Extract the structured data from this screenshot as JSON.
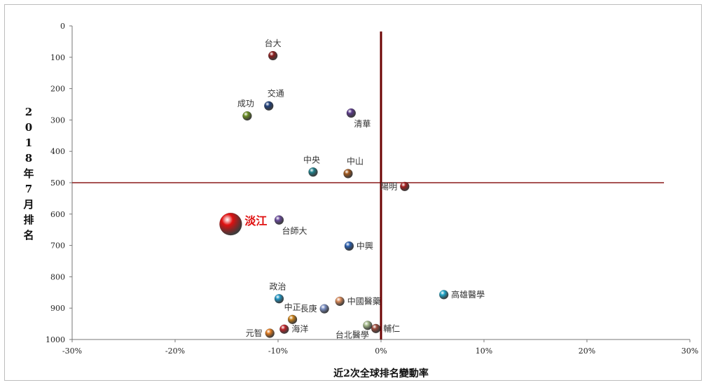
{
  "chart_data": {
    "type": "scatter",
    "title": "",
    "xlabel": "近2次全球排名變動率",
    "ylabel": "2018年7月排名",
    "xlim": [
      -0.3,
      0.3
    ],
    "ylim": [
      0,
      1000
    ],
    "y_inverted": true,
    "x_ticks": [
      "-30%",
      "-20%",
      "-10%",
      "0%",
      "10%",
      "20%",
      "30%"
    ],
    "y_ticks": [
      "0",
      "100",
      "200",
      "300",
      "400",
      "500",
      "600",
      "700",
      "800",
      "900",
      "1000"
    ],
    "reference_lines": {
      "horizontal_y": 500,
      "vertical_x": 0
    },
    "reference_line_colors": {
      "horizontal": "#8b1a1a",
      "vertical": "#6b0000"
    },
    "points": [
      {
        "label": "台大",
        "x": -0.105,
        "y": 95,
        "color": "#8b1c1c",
        "label_pos": "above"
      },
      {
        "label": "交通",
        "x": -0.109,
        "y": 255,
        "color": "#1f3f7a",
        "label_pos": "above-right"
      },
      {
        "label": "成功",
        "x": -0.13,
        "y": 287,
        "color": "#6b8e23",
        "label_pos": "above-left"
      },
      {
        "label": "清華",
        "x": -0.029,
        "y": 278,
        "color": "#5b3a8a",
        "label_pos": "below-right"
      },
      {
        "label": "中央",
        "x": -0.066,
        "y": 466,
        "color": "#1f7f8a",
        "label_pos": "above-left"
      },
      {
        "label": "中山",
        "x": -0.032,
        "y": 471,
        "color": "#a0561b",
        "label_pos": "above-right"
      },
      {
        "label": "陽明",
        "x": 0.023,
        "y": 512,
        "color": "#a52020",
        "label_pos": "left"
      },
      {
        "label": "淡江",
        "x": -0.146,
        "y": 632,
        "color": "#e01010",
        "label_pos": "right",
        "highlight": true,
        "label_color": "#e01010"
      },
      {
        "label": "台師大",
        "x": -0.099,
        "y": 619,
        "color": "#6a4c9c",
        "label_pos": "below-right"
      },
      {
        "label": "中興",
        "x": -0.031,
        "y": 702,
        "color": "#2a5fb0",
        "label_pos": "right"
      },
      {
        "label": "高雄醫學",
        "x": 0.061,
        "y": 857,
        "color": "#1fa6c8",
        "label_pos": "right"
      },
      {
        "label": "政治",
        "x": -0.099,
        "y": 870,
        "color": "#2196c4",
        "label_pos": "above-left"
      },
      {
        "label": "中國醫藥",
        "x": -0.04,
        "y": 878,
        "color": "#d98a5a",
        "label_pos": "right"
      },
      {
        "label": "長庚",
        "x": -0.055,
        "y": 902,
        "color": "#7b8fc4",
        "label_pos": "left"
      },
      {
        "label": "中正",
        "x": -0.086,
        "y": 936,
        "color": "#c8801a",
        "label_pos": "above"
      },
      {
        "label": "台北醫學",
        "x": -0.013,
        "y": 955,
        "color": "#a4b98a",
        "label_pos": "below-left"
      },
      {
        "label": "輔仁",
        "x": -0.005,
        "y": 965,
        "color": "#9a4a3a",
        "label_pos": "right"
      },
      {
        "label": "海洋",
        "x": -0.094,
        "y": 967,
        "color": "#c0252a",
        "label_pos": "right"
      },
      {
        "label": "元智",
        "x": -0.108,
        "y": 980,
        "color": "#e07a20",
        "label_pos": "left"
      }
    ]
  }
}
